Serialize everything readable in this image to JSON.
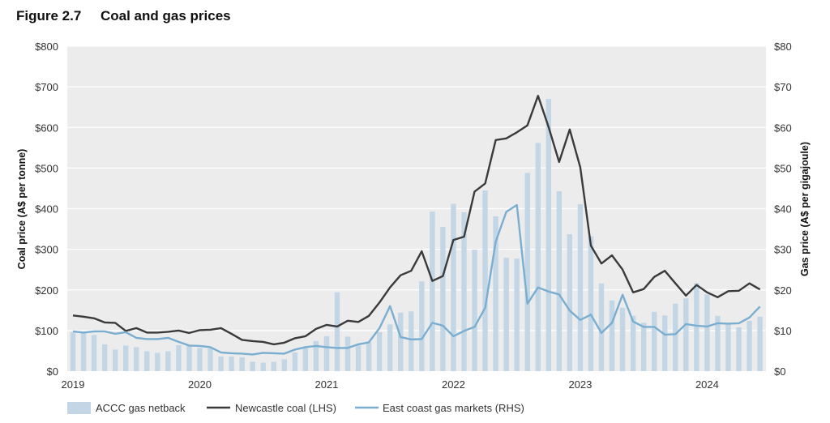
{
  "figure_label": "Figure 2.7",
  "title": "Coal and gas prices",
  "colors": {
    "bars": "#c2d6e6",
    "coal": "#3a3a3a",
    "gas": "#7aaed0",
    "plot_bg": "#ececec",
    "grid": "#ffffff"
  },
  "chart_data": {
    "type": "bar+line",
    "title": "Coal and gas prices",
    "x_start": "2019-01",
    "x_frequency": "monthly",
    "xticks": [
      "2019",
      "2020",
      "2021",
      "2022",
      "2023",
      "2024"
    ],
    "ylabel_left": "Coal price (A$ per tonne)",
    "ylabel_right": "Gas price (A$ per gigajoule)",
    "ylim_left": [
      0,
      800
    ],
    "ylim_right": [
      0,
      80
    ],
    "yticks_left": [
      "$0",
      "$100",
      "$200",
      "$300",
      "$400",
      "$500",
      "$600",
      "$700",
      "$800"
    ],
    "yticks_right": [
      "$0",
      "$10",
      "$20",
      "$30",
      "$40",
      "$50",
      "$60",
      "$70",
      "$80"
    ],
    "grid": "horizontal",
    "legend_position": "bottom",
    "series": [
      {
        "name": "ACCC gas netback",
        "type": "bar",
        "axis": "right",
        "values": [
          9.6,
          9.6,
          8.9,
          6.6,
          5.3,
          6.3,
          5.9,
          4.9,
          4.5,
          4.9,
          6.4,
          6.3,
          5.7,
          5.6,
          3.6,
          3.6,
          3.4,
          2.3,
          2.1,
          2.3,
          2.9,
          4.6,
          5.7,
          7.4,
          8.6,
          19.4,
          8.5,
          6.3,
          7.1,
          9.6,
          11.5,
          14.4,
          14.7,
          22.1,
          39.3,
          35.5,
          41.2,
          39.1,
          29.9,
          44.5,
          38.1,
          27.9,
          27.7,
          48.8,
          56.2,
          67.0,
          44.3,
          33.7,
          41.1,
          33.2,
          21.6,
          17.4,
          15.6,
          13.6,
          11.9,
          14.6,
          13.7,
          16.6,
          17.9,
          21.7,
          18.9,
          13.6,
          11.6,
          10.8,
          12.4,
          13.4
        ]
      },
      {
        "name": "Newcastle coal (LHS)",
        "type": "line",
        "axis": "left",
        "values": [
          137,
          134,
          130,
          120,
          119,
          99,
          106,
          95,
          95,
          97,
          100,
          94,
          101,
          102,
          106,
          92,
          77,
          74,
          72,
          66,
          70,
          81,
          86,
          104,
          114,
          110,
          124,
          121,
          136,
          169,
          206,
          236,
          247,
          295,
          222,
          234,
          323,
          331,
          442,
          462,
          569,
          573,
          588,
          605,
          678,
          601,
          515,
          595,
          502,
          309,
          265,
          285,
          250,
          194,
          202,
          232,
          247,
          216,
          186,
          212,
          194,
          182,
          197,
          198,
          216,
          201
        ]
      },
      {
        "name": "East coast gas markets (RHS)",
        "type": "line",
        "axis": "right",
        "values": [
          9.8,
          9.5,
          9.8,
          9.8,
          9.2,
          9.6,
          8.2,
          7.9,
          7.9,
          8.2,
          7.2,
          6.3,
          6.2,
          5.9,
          4.6,
          4.4,
          4.3,
          4.1,
          4.5,
          4.4,
          4.3,
          5.3,
          5.9,
          6.2,
          5.9,
          5.7,
          5.7,
          6.6,
          7.1,
          10.6,
          16.0,
          8.4,
          7.8,
          7.9,
          11.9,
          11.2,
          8.6,
          9.9,
          10.9,
          15.6,
          31.9,
          39.2,
          40.9,
          16.6,
          20.6,
          19.6,
          18.9,
          14.9,
          12.6,
          13.9,
          9.4,
          11.9,
          18.8,
          12.2,
          10.9,
          10.9,
          9.0,
          9.1,
          11.6,
          11.2,
          11.0,
          11.8,
          11.7,
          11.8,
          13.2,
          15.9
        ]
      }
    ]
  }
}
